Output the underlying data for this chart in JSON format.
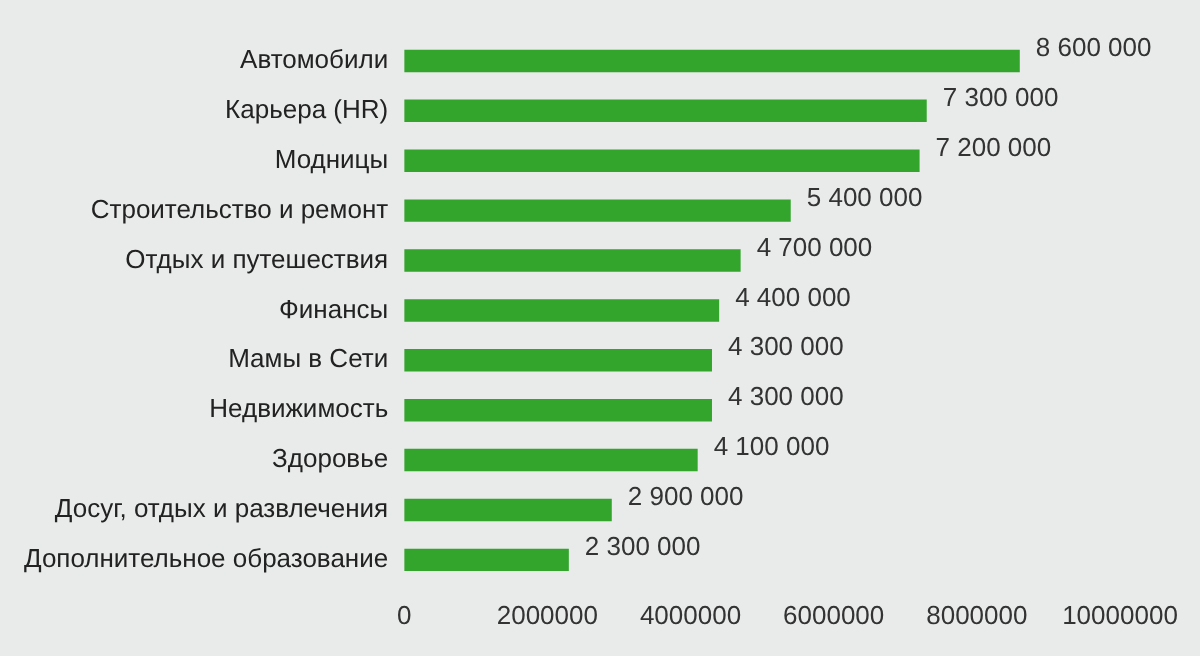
{
  "chart_data": {
    "type": "bar",
    "orientation": "horizontal",
    "categories": [
      "Автомобили",
      "Карьера (HR)",
      "Модницы",
      "Строительство и ремонт",
      "Отдых и путешествия",
      "Финансы",
      "Мамы в Сети",
      "Недвижимость",
      "Здоровье",
      "Досуг, отдых и развлечения",
      "Дополнительное образование"
    ],
    "values": [
      8600000,
      7300000,
      7200000,
      5400000,
      4700000,
      4400000,
      4300000,
      4300000,
      4100000,
      2900000,
      2300000
    ],
    "value_labels": [
      "8 600 000",
      "7 300 000",
      "7 200 000",
      "5 400 000",
      "4 700 000",
      "4 400 000",
      "4 300 000",
      "4 300 000",
      "4 100 000",
      "2 900 000",
      "2 300 000"
    ],
    "color": "#34a52c",
    "xlim": [
      0,
      10000000
    ],
    "xticks": [
      0,
      2000000,
      4000000,
      6000000,
      8000000,
      10000000
    ],
    "grid": false,
    "legend": false
  }
}
